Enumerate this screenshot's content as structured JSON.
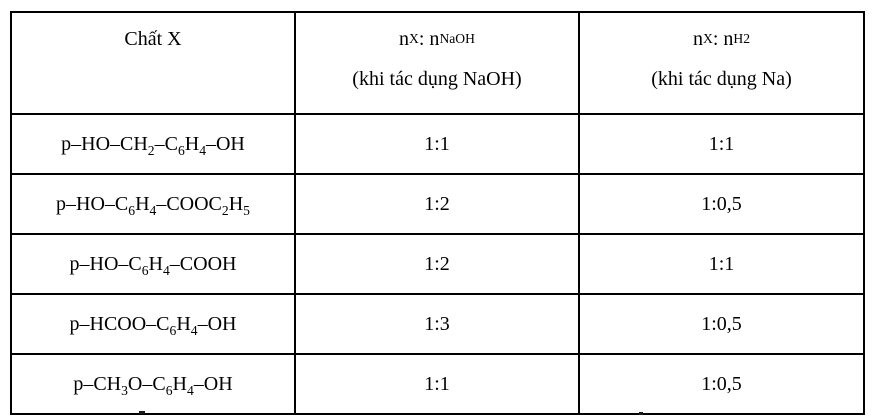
{
  "table": {
    "header": {
      "substance": "Chất X",
      "naoh_line1": "n~X~ : n~NaOH~",
      "naoh_line2": "(khi tác dụng NaOH)",
      "h2_line1": "n~X~ : n~H2~",
      "h2_line2": "(khi tác dụng Na)"
    },
    "rows": [
      {
        "substance": "p–HO–CH~2~–C~6~H~4~–OH",
        "naoh_ratio": "1:1",
        "h2_ratio": "1:1"
      },
      {
        "substance": "p–HO–C~6~H~4~–COOC~2~H~5~",
        "naoh_ratio": "1:2",
        "h2_ratio": "1:0,5"
      },
      {
        "substance": "p–HO–C~6~H~4~–COOH",
        "naoh_ratio": "1:2",
        "h2_ratio": "1:1"
      },
      {
        "substance": "p–HCOO–C~6~H~4~–OH",
        "naoh_ratio": "1:3",
        "h2_ratio": "1:0,5"
      },
      {
        "substance": "p–CH~3~O–C~6~H~4~–OH",
        "naoh_ratio": "1:1",
        "h2_ratio": "1:0,5"
      }
    ],
    "colors": {
      "border": "#000000",
      "text": "#000000",
      "background": "#ffffff"
    }
  }
}
